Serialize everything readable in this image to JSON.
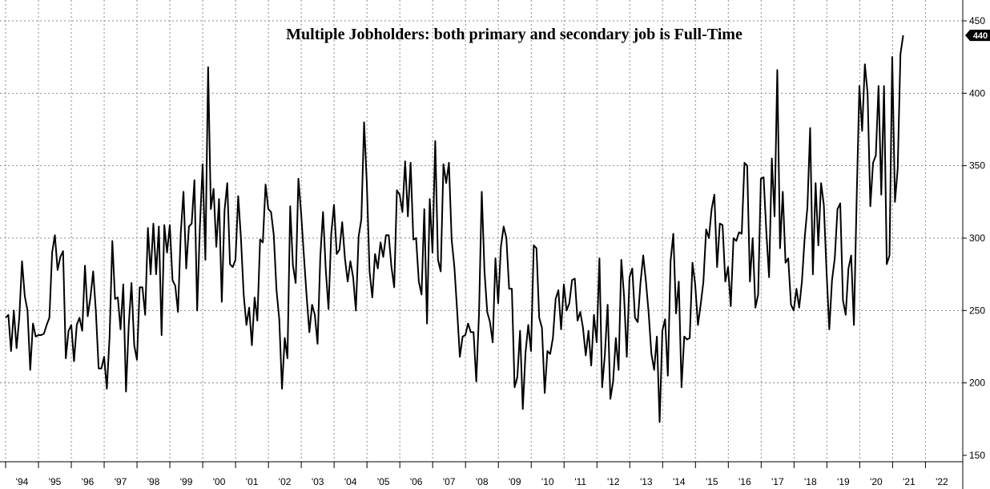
{
  "chart_data": {
    "type": "line",
    "title": "Multiple Jobholders: both primary and secondary job is Full-Time",
    "xlabel": "",
    "ylabel": "",
    "ylim": [
      150,
      450
    ],
    "yticks": [
      150,
      200,
      250,
      300,
      350,
      400,
      450
    ],
    "xlim": [
      1994.0,
      2022.6
    ],
    "xtick_labels": [
      "'94",
      "'95",
      "'96",
      "'97",
      "'98",
      "'99",
      "'00",
      "'01",
      "'02",
      "'03",
      "'04",
      "'05",
      "'06",
      "'07",
      "'08",
      "'09",
      "'10",
      "'11",
      "'12",
      "'13",
      "'14",
      "'15",
      "'16",
      "'17",
      "'18",
      "'19",
      "'20",
      "'21",
      "'22"
    ],
    "grid": true,
    "y_axis_side": "right",
    "last_value_label": "440",
    "series": [
      {
        "color": "#000000",
        "x_start": 1994.0,
        "step": 0.0833,
        "values": [
          245,
          247,
          222,
          250,
          224,
          245,
          284,
          260,
          250,
          209,
          241,
          232,
          233,
          233,
          234,
          240,
          245,
          290,
          302,
          278,
          287,
          291,
          217,
          236,
          240,
          215,
          240,
          245,
          236,
          281,
          246,
          259,
          277,
          249,
          210,
          210,
          218,
          196,
          232,
          298,
          258,
          259,
          237,
          268,
          194,
          240,
          269,
          226,
          216,
          266,
          266,
          247,
          307,
          275,
          310,
          275,
          308,
          233,
          309,
          290,
          309,
          271,
          267,
          249,
          303,
          332,
          279,
          308,
          310,
          340,
          250,
          308,
          351,
          285,
          418,
          320,
          334,
          294,
          327,
          256,
          319,
          338,
          282,
          280,
          285,
          329,
          300,
          261,
          240,
          252,
          226,
          259,
          243,
          299,
          297,
          337,
          320,
          318,
          302,
          264,
          244,
          196,
          231,
          217,
          322,
          281,
          269,
          341,
          317,
          288,
          260,
          235,
          254,
          247,
          227,
          287,
          318,
          278,
          251,
          303,
          323,
          289,
          292,
          311,
          286,
          270,
          284,
          273,
          250,
          301,
          313,
          380,
          338,
          277,
          259,
          289,
          279,
          297,
          287,
          302,
          302,
          280,
          266,
          333,
          330,
          318,
          353,
          315,
          352,
          299,
          300,
          270,
          261,
          320,
          241,
          327,
          290,
          367,
          285,
          277,
          351,
          338,
          352,
          299,
          280,
          250,
          218,
          232,
          233,
          241,
          235,
          235,
          201,
          248,
          332,
          277,
          249,
          242,
          228,
          286,
          255,
          294,
          308,
          300,
          265,
          265,
          197,
          204,
          236,
          182,
          221,
          240,
          222,
          295,
          293,
          245,
          238,
          193,
          222,
          220,
          231,
          258,
          264,
          237,
          268,
          250,
          255,
          271,
          272,
          243,
          249,
          238,
          219,
          236,
          212,
          247,
          228,
          286,
          197,
          220,
          254,
          189,
          201,
          231,
          209,
          285,
          260,
          218,
          273,
          279,
          245,
          242,
          269,
          288,
          270,
          248,
          220,
          209,
          232,
          173,
          236,
          244,
          205,
          284,
          303,
          248,
          270,
          197,
          232,
          230,
          231,
          283,
          268,
          240,
          254,
          270,
          306,
          300,
          320,
          330,
          280,
          310,
          309,
          270,
          280,
          253,
          300,
          298,
          304,
          303,
          352,
          350,
          270,
          300,
          252,
          261,
          341,
          342,
          304,
          273,
          355,
          315,
          416,
          293,
          332,
          283,
          286,
          254,
          250,
          265,
          252,
          270,
          300,
          321,
          376,
          275,
          338,
          295,
          338,
          323,
          277,
          237,
          271,
          286,
          320,
          324,
          257,
          247,
          279,
          288,
          240,
          327,
          405,
          374,
          420,
          400,
          322,
          352,
          357,
          405,
          330,
          405,
          282,
          288,
          425,
          325,
          348,
          427,
          440
        ]
      }
    ]
  }
}
